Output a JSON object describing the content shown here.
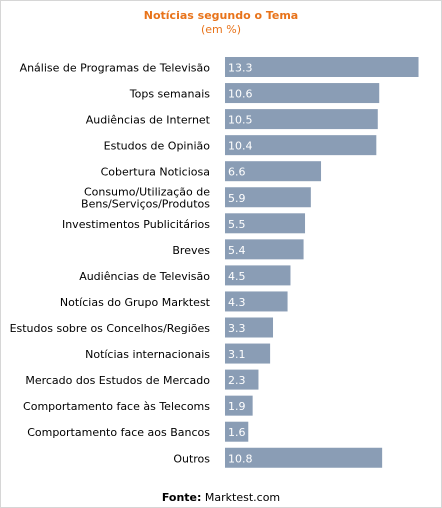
{
  "chart_data": {
    "type": "bar",
    "orientation": "horizontal",
    "title": "Notícias segundo o Tema",
    "subtitle": "(em %)",
    "categories": [
      "Análise de Programas de Televisão",
      "Tops semanais",
      "Audiências de Internet",
      "Estudos de Opinião",
      "Cobertura Noticiosa",
      "Consumo/Utilização de\nBens/Serviços/Produtos",
      "Investimentos Publicitários",
      "Breves",
      "Audiências de Televisão",
      "Notícias do Grupo Marktest",
      "Estudos sobre os Concelhos/Regiões",
      "Notícias internacionais",
      "Mercado dos Estudos de Mercado",
      "Comportamento face às Telecoms",
      "Comportamento face aos Bancos",
      "Outros"
    ],
    "values": [
      13.3,
      10.6,
      10.5,
      10.4,
      6.6,
      5.9,
      5.5,
      5.4,
      4.5,
      4.3,
      3.3,
      3.1,
      2.3,
      1.9,
      1.6,
      10.8
    ],
    "value_labels": [
      "13.3",
      "10.6",
      "10.5",
      "10.4",
      "6.6",
      "5.9",
      "5.5",
      "5.4",
      "4.5",
      "4.3",
      "3.3",
      "3.1",
      "2.3",
      "1.9",
      "1.6",
      "10.8"
    ],
    "bar_color": "#8a9db5",
    "grid": false,
    "legend": "none"
  },
  "colors": {
    "title": "#e8731a",
    "label": "#000000",
    "value_label": "#ffffff"
  },
  "source": {
    "label": "Fonte:",
    "value": "Marktest.com"
  }
}
